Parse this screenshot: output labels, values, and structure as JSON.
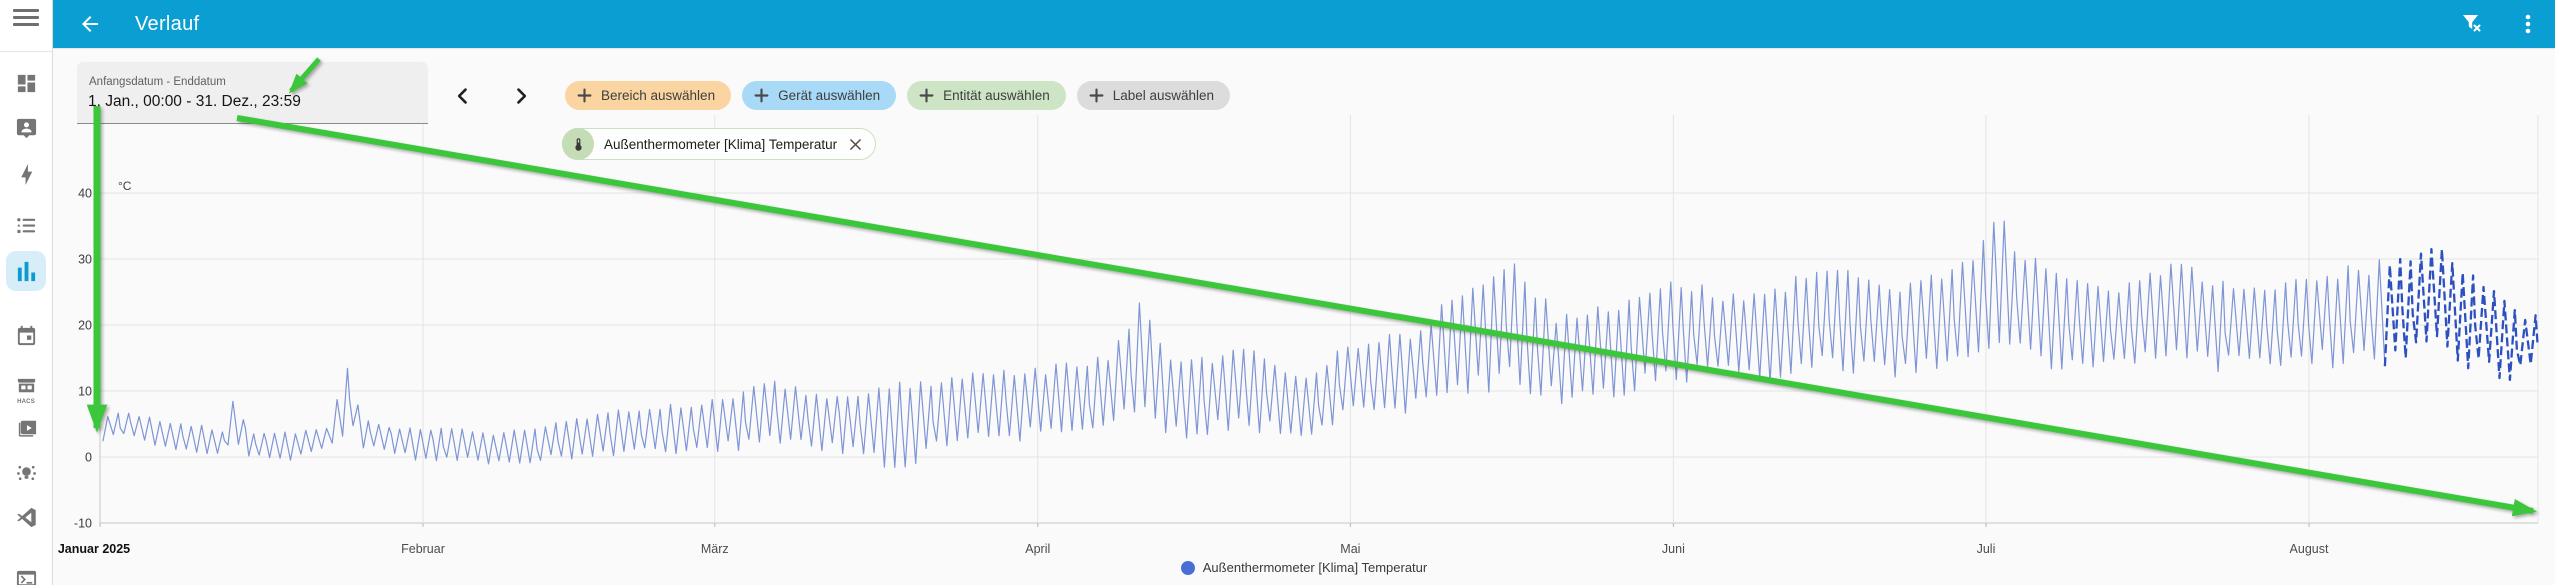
{
  "appbar": {
    "title": "Verlauf",
    "icons": [
      "back-arrow-icon",
      "filter-remove-icon",
      "dots-vertical-icon"
    ]
  },
  "sidebar": {
    "items": [
      {
        "icon": "view-dashboard-icon"
      },
      {
        "icon": "person-message-icon"
      },
      {
        "icon": "lightning-bolt-icon"
      },
      {
        "icon": "logbook-list-icon"
      },
      {
        "icon": "history-chart-icon",
        "active": true
      },
      {
        "icon": "calendar-icon"
      },
      {
        "icon": "hacs-store-icon",
        "label": "HACS"
      },
      {
        "icon": "media-library-icon"
      },
      {
        "icon": "hue-bulb-icon"
      },
      {
        "icon": "vscode-icon"
      },
      {
        "icon": "terminal-icon"
      }
    ]
  },
  "filters": {
    "date_range": {
      "label": "Anfangsdatum - Enddatum",
      "value": "1. Jan., 00:00 - 31. Dez., 23:59"
    },
    "chips": [
      {
        "label": "Bereich auswählen",
        "color": "#fbd5a1"
      },
      {
        "label": "Gerät auswählen",
        "color": "#a8d9f7"
      },
      {
        "label": "Entität auswählen",
        "color": "#cde5c4"
      },
      {
        "label": "Label auswählen",
        "color": "#dcdcdc"
      }
    ],
    "selected_entity": {
      "label": "Außenthermometer [Klima] Temperatur",
      "icon": "thermometer-icon"
    }
  },
  "legend": {
    "label": "Außenthermometer [Klima] Temperatur",
    "color": "#4a6fd4"
  },
  "chart_data": {
    "type": "line",
    "title": "",
    "unit": "°C",
    "ylabel": "°C",
    "xlabel": "",
    "ylim": [
      -12.5,
      48
    ],
    "grid": true,
    "y_ticks": [
      40,
      30,
      20,
      10,
      0,
      -10
    ],
    "x_ticks": [
      "Januar 2025",
      "Februar",
      "März",
      "April",
      "Mai",
      "Juni",
      "Juli",
      "August"
    ],
    "series": [
      {
        "name": "Außenthermometer [Klima] Temperatur",
        "color": "#7e95d6",
        "recent_color": "#2d50c0"
      }
    ],
    "envelope_by_day": [
      {
        "d": 0,
        "min": 2,
        "max": 6.5
      },
      {
        "d": 3,
        "min": 3,
        "max": 7
      },
      {
        "d": 6,
        "min": 1,
        "max": 6
      },
      {
        "d": 10,
        "min": 0,
        "max": 5
      },
      {
        "d": 12,
        "min": 0,
        "max": 4
      },
      {
        "d": 13,
        "min": 2,
        "max": 11.5
      },
      {
        "d": 14,
        "min": 0,
        "max": 4
      },
      {
        "d": 18,
        "min": -1,
        "max": 4
      },
      {
        "d": 22,
        "min": 1,
        "max": 5
      },
      {
        "d": 24,
        "min": 3,
        "max": 15.5
      },
      {
        "d": 25,
        "min": 1,
        "max": 6
      },
      {
        "d": 28,
        "min": 0,
        "max": 5
      },
      {
        "d": 31,
        "min": -1,
        "max": 5
      },
      {
        "d": 38,
        "min": -1.5,
        "max": 4
      },
      {
        "d": 45,
        "min": -1,
        "max": 6
      },
      {
        "d": 52,
        "min": 0,
        "max": 8
      },
      {
        "d": 58,
        "min": 0,
        "max": 9
      },
      {
        "d": 65,
        "min": 1,
        "max": 12
      },
      {
        "d": 70,
        "min": 0,
        "max": 10
      },
      {
        "d": 77,
        "min": -3.5,
        "max": 12
      },
      {
        "d": 82,
        "min": 1,
        "max": 13
      },
      {
        "d": 90,
        "min": 2,
        "max": 14
      },
      {
        "d": 97,
        "min": 3,
        "max": 16
      },
      {
        "d": 100,
        "min": 5,
        "max": 26
      },
      {
        "d": 103,
        "min": 2,
        "max": 15
      },
      {
        "d": 110,
        "min": 3,
        "max": 17
      },
      {
        "d": 116,
        "min": 2,
        "max": 13
      },
      {
        "d": 120,
        "min": 5,
        "max": 18
      },
      {
        "d": 126,
        "min": 6,
        "max": 20
      },
      {
        "d": 132,
        "min": 8,
        "max": 28
      },
      {
        "d": 136,
        "min": 9,
        "max": 30.5
      },
      {
        "d": 140,
        "min": 7,
        "max": 22
      },
      {
        "d": 145,
        "min": 8,
        "max": 24
      },
      {
        "d": 151,
        "min": 10,
        "max": 28.5
      },
      {
        "d": 156,
        "min": 11,
        "max": 25
      },
      {
        "d": 161,
        "min": 10,
        "max": 27
      },
      {
        "d": 166,
        "min": 12,
        "max": 30
      },
      {
        "d": 172,
        "min": 11,
        "max": 26
      },
      {
        "d": 178,
        "min": 13,
        "max": 30
      },
      {
        "d": 181,
        "min": 15,
        "max": 34
      },
      {
        "d": 182,
        "min": 16,
        "max": 38.5
      },
      {
        "d": 184,
        "min": 14,
        "max": 33
      },
      {
        "d": 188,
        "min": 12,
        "max": 28
      },
      {
        "d": 193,
        "min": 13,
        "max": 26
      },
      {
        "d": 199,
        "min": 13,
        "max": 30.5
      },
      {
        "d": 203,
        "min": 12,
        "max": 28
      },
      {
        "d": 208,
        "min": 13,
        "max": 26
      },
      {
        "d": 212,
        "min": 13,
        "max": 28
      },
      {
        "d": 217,
        "min": 12,
        "max": 30
      },
      {
        "d": 221,
        "min": 13,
        "max": 31
      },
      {
        "d": 224,
        "min": 15,
        "max": 33
      },
      {
        "d": 228,
        "min": 12,
        "max": 28
      },
      {
        "d": 231,
        "min": 10,
        "max": 24
      },
      {
        "d": 233,
        "min": 12,
        "max": 22
      }
    ],
    "legend_position": "bottom"
  },
  "annotations": {
    "color": "#3cc63c",
    "arrows": [
      {
        "name": "arrow-to-date-field",
        "from": [
          319,
          59
        ],
        "to": [
          291,
          91
        ],
        "width": 5
      },
      {
        "name": "arrow-down-left-axis",
        "from": [
          97,
          106
        ],
        "to": [
          97,
          428
        ],
        "width": 7
      },
      {
        "name": "arrow-diagonal-long",
        "from": [
          237,
          118
        ],
        "to": [
          2533,
          511
        ],
        "width": 6
      }
    ]
  }
}
